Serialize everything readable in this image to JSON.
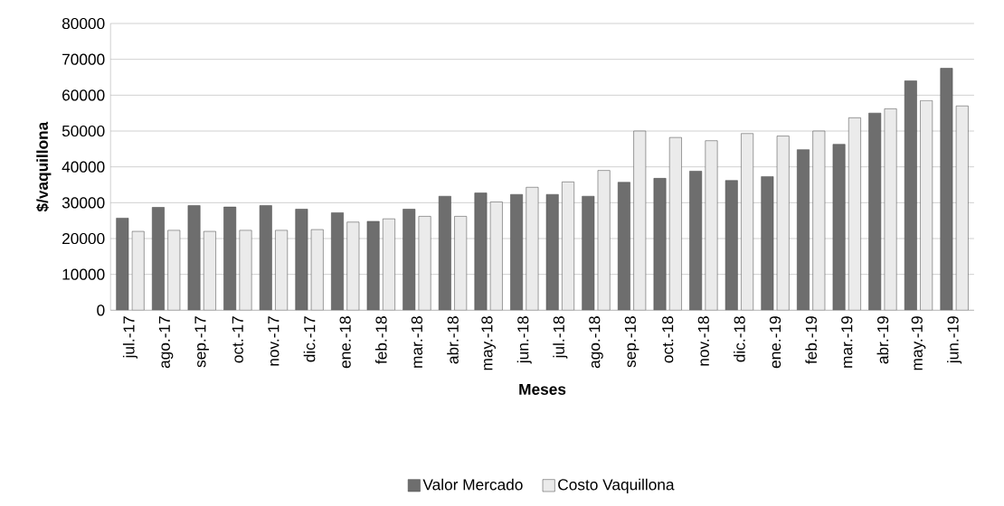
{
  "chart_data": {
    "type": "bar",
    "xlabel": "Meses",
    "ylabel": "$/vaquillona",
    "categories": [
      "jul.-17",
      "ago.-17",
      "sep.-17",
      "oct.-17",
      "nov.-17",
      "dic.-17",
      "ene.-18",
      "feb.-18",
      "mar.-18",
      "abr.-18",
      "may.-18",
      "jun.-18",
      "jul.-18",
      "ago.-18",
      "sep.-18",
      "oct.-18",
      "nov.-18",
      "dic.-18",
      "ene.-19",
      "feb.-19",
      "mar.-19",
      "abr.-19",
      "may.-19",
      "jun.-19"
    ],
    "series": [
      {
        "name": "Valor Mercado",
        "color": "#6e6e6e",
        "values": [
          25700,
          28700,
          29200,
          28800,
          29200,
          28200,
          27200,
          24800,
          28200,
          31800,
          32700,
          32300,
          32300,
          31800,
          35700,
          36800,
          38800,
          36200,
          37300,
          44800,
          46300,
          55000,
          64000,
          67500
        ]
      },
      {
        "name": "Costo Vaquillona",
        "color": "#ebebeb",
        "values": [
          22000,
          22300,
          22000,
          22300,
          22300,
          22500,
          24600,
          25500,
          26200,
          26200,
          30200,
          34300,
          35800,
          39000,
          50000,
          48200,
          47300,
          49300,
          48600,
          50000,
          53700,
          56200,
          58500,
          57000
        ]
      }
    ],
    "ylim": [
      0,
      80000
    ],
    "yticks": [
      0,
      10000,
      20000,
      30000,
      40000,
      50000,
      60000,
      70000,
      80000
    ],
    "grid": "y",
    "legend": "bottom"
  }
}
